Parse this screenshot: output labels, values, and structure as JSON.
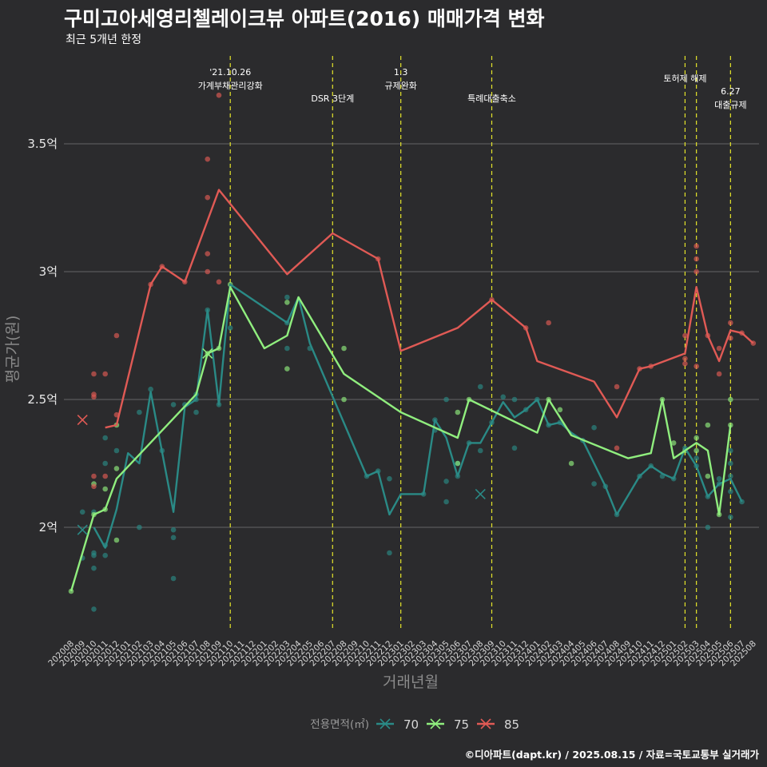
{
  "title": "구미고아세영리첼레이크뷰 아파트(2016) 매매가격 변화",
  "subtitle": "최근 5개년 한정",
  "caption": "©디아파트(dapt.kr) / 2025.08.15 / 자료=국토교통부 실거래가",
  "chart_data": {
    "type": "line",
    "xlabel": "거래년월",
    "ylabel": "평균가(원)",
    "categories": [
      "202008",
      "202009",
      "202010",
      "202011",
      "202012",
      "202101",
      "202102",
      "202103",
      "202104",
      "202105",
      "202106",
      "202107",
      "202108",
      "202109",
      "202110",
      "202111",
      "202112",
      "202201",
      "202202",
      "202203",
      "202204",
      "202205",
      "202206",
      "202207",
      "202208",
      "202209",
      "202210",
      "202211",
      "202212",
      "202301",
      "202302",
      "202303",
      "202304",
      "202305",
      "202306",
      "202307",
      "202308",
      "202309",
      "202310",
      "202311",
      "202312",
      "202401",
      "202402",
      "202403",
      "202404",
      "202405",
      "202406",
      "202407",
      "202408",
      "202409",
      "202410",
      "202411",
      "202412",
      "202501",
      "202502",
      "202503",
      "202504",
      "202505",
      "202506",
      "202507",
      "202508"
    ],
    "ylim": [
      1.6,
      3.85
    ],
    "yticks": [
      {
        "value": 2.0,
        "label": "2억"
      },
      {
        "value": 2.5,
        "label": "2.5억"
      },
      {
        "value": 3.0,
        "label": "3억"
      },
      {
        "value": 3.5,
        "label": "3.5억"
      }
    ],
    "grid": true,
    "legend": {
      "title": "전용면적(㎡)",
      "position": "bottom"
    },
    "series": [
      {
        "name": "70",
        "color": "#2a8a86",
        "line": [
          [
            "202010",
            2.0
          ],
          [
            "202011",
            1.92
          ],
          [
            "202012",
            2.07
          ],
          [
            "202101",
            2.29
          ],
          [
            "202102",
            2.25
          ],
          [
            "202103",
            2.53
          ],
          [
            "202105",
            2.06
          ],
          [
            "202106",
            2.47
          ],
          [
            "202107",
            2.5
          ],
          [
            "202108",
            2.85
          ],
          [
            "202109",
            2.48
          ],
          [
            "202110",
            2.95
          ],
          [
            "202203",
            2.8
          ],
          [
            "202204",
            2.9
          ],
          [
            "202205",
            2.72
          ],
          [
            "202210",
            2.2
          ],
          [
            "202211",
            2.22
          ],
          [
            "202212",
            2.05
          ],
          [
            "202301",
            2.13
          ],
          [
            "202302",
            2.13
          ],
          [
            "202303",
            2.13
          ],
          [
            "202304",
            2.42
          ],
          [
            "202305",
            2.35
          ],
          [
            "202306",
            2.2
          ],
          [
            "202307",
            2.33
          ],
          [
            "202308",
            2.33
          ],
          [
            "202309",
            2.41
          ],
          [
            "202310",
            2.49
          ],
          [
            "202311",
            2.43
          ],
          [
            "202312",
            2.46
          ],
          [
            "202401",
            2.5
          ],
          [
            "202402",
            2.4
          ],
          [
            "202403",
            2.41
          ],
          [
            "202404",
            2.37
          ],
          [
            "202405",
            2.34
          ],
          [
            "202406",
            2.25
          ],
          [
            "202407",
            2.16
          ],
          [
            "202408",
            2.05
          ],
          [
            "202410",
            2.2
          ],
          [
            "202411",
            2.24
          ],
          [
            "202412",
            2.21
          ],
          [
            "202501",
            2.19
          ],
          [
            "202502",
            2.31
          ],
          [
            "202503",
            2.24
          ],
          [
            "202504",
            2.12
          ],
          [
            "202505",
            2.17
          ],
          [
            "202506",
            2.19
          ],
          [
            "202507",
            2.1
          ]
        ],
        "points": [
          [
            "202009",
            1.88
          ],
          [
            "202009",
            2.06
          ],
          [
            "202010",
            1.84
          ],
          [
            "202010",
            1.89
          ],
          [
            "202010",
            1.9
          ],
          [
            "202010",
            2.06
          ],
          [
            "202010",
            1.68
          ],
          [
            "202011",
            1.93
          ],
          [
            "202011",
            1.89
          ],
          [
            "202011",
            2.35
          ],
          [
            "202011",
            2.25
          ],
          [
            "202012",
            2.3
          ],
          [
            "202102",
            2.0
          ],
          [
            "202102",
            2.45
          ],
          [
            "202103",
            2.54
          ],
          [
            "202104",
            2.3
          ],
          [
            "202105",
            2.48
          ],
          [
            "202105",
            1.99
          ],
          [
            "202105",
            1.96
          ],
          [
            "202105",
            1.8
          ],
          [
            "202106",
            2.48
          ],
          [
            "202107",
            2.45
          ],
          [
            "202107",
            2.52
          ],
          [
            "202107",
            2.5
          ],
          [
            "202108",
            2.85
          ],
          [
            "202109",
            2.48
          ],
          [
            "202110",
            2.78
          ],
          [
            "202203",
            2.9
          ],
          [
            "202203",
            2.8
          ],
          [
            "202203",
            2.7
          ],
          [
            "202205",
            2.7
          ],
          [
            "202210",
            2.2
          ],
          [
            "202211",
            2.22
          ],
          [
            "202212",
            2.19
          ],
          [
            "202212",
            1.9
          ],
          [
            "202303",
            2.13
          ],
          [
            "202304",
            2.42
          ],
          [
            "202304",
            2.38
          ],
          [
            "202305",
            2.5
          ],
          [
            "202305",
            2.18
          ],
          [
            "202305",
            2.1
          ],
          [
            "202306",
            2.2
          ],
          [
            "202306",
            2.25
          ],
          [
            "202307",
            2.33
          ],
          [
            "202308",
            2.55
          ],
          [
            "202308",
            2.3
          ],
          [
            "202309",
            2.41
          ],
          [
            "202310",
            2.51
          ],
          [
            "202311",
            2.5
          ],
          [
            "202311",
            2.31
          ],
          [
            "202312",
            2.46
          ],
          [
            "202401",
            2.5
          ],
          [
            "202402",
            2.4
          ],
          [
            "202403",
            2.41
          ],
          [
            "202405",
            2.34
          ],
          [
            "202406",
            2.39
          ],
          [
            "202406",
            2.17
          ],
          [
            "202407",
            2.16
          ],
          [
            "202408",
            2.05
          ],
          [
            "202410",
            2.2
          ],
          [
            "202411",
            2.24
          ],
          [
            "202412",
            2.2
          ],
          [
            "202501",
            2.19
          ],
          [
            "202502",
            2.31
          ],
          [
            "202503",
            2.24
          ],
          [
            "202503",
            2.27
          ],
          [
            "202504",
            2.0
          ],
          [
            "202504",
            2.12
          ],
          [
            "202505",
            2.17
          ],
          [
            "202505",
            2.19
          ],
          [
            "202506",
            2.3
          ],
          [
            "202506",
            2.25
          ],
          [
            "202506",
            2.2
          ],
          [
            "202506",
            2.14
          ],
          [
            "202506",
            2.04
          ],
          [
            "202507",
            2.1
          ]
        ],
        "crosses": [
          [
            "202009",
            1.99
          ],
          [
            "202308",
            2.13
          ]
        ]
      },
      {
        "name": "75",
        "color": "#90ee7e",
        "line": [
          [
            "202008",
            1.75
          ],
          [
            "202010",
            2.05
          ],
          [
            "202011",
            2.07
          ],
          [
            "202012",
            2.19
          ],
          [
            "202107",
            2.52
          ],
          [
            "202108",
            2.68
          ],
          [
            "202109",
            2.7
          ],
          [
            "202110",
            2.94
          ],
          [
            "202201",
            2.7
          ],
          [
            "202203",
            2.75
          ],
          [
            "202204",
            2.9
          ],
          [
            "202208",
            2.6
          ],
          [
            "202301",
            2.45
          ],
          [
            "202306",
            2.35
          ],
          [
            "202307",
            2.5
          ],
          [
            "202401",
            2.37
          ],
          [
            "202402",
            2.5
          ],
          [
            "202404",
            2.36
          ],
          [
            "202409",
            2.27
          ],
          [
            "202411",
            2.29
          ],
          [
            "202412",
            2.5
          ],
          [
            "202501",
            2.27
          ],
          [
            "202502",
            2.3
          ],
          [
            "202503",
            2.33
          ],
          [
            "202504",
            2.3
          ],
          [
            "202505",
            2.05
          ],
          [
            "202506",
            2.4
          ]
        ],
        "points": [
          [
            "202008",
            1.75
          ],
          [
            "202010",
            2.17
          ],
          [
            "202010",
            2.05
          ],
          [
            "202011",
            2.15
          ],
          [
            "202011",
            2.07
          ],
          [
            "202012",
            1.95
          ],
          [
            "202012",
            2.23
          ],
          [
            "202012",
            2.4
          ],
          [
            "202108",
            2.68
          ],
          [
            "202109",
            2.7
          ],
          [
            "202110",
            2.95
          ],
          [
            "202203",
            2.88
          ],
          [
            "202203",
            2.62
          ],
          [
            "202208",
            2.7
          ],
          [
            "202208",
            2.5
          ],
          [
            "202306",
            2.45
          ],
          [
            "202306",
            2.25
          ],
          [
            "202307",
            2.5
          ],
          [
            "202402",
            2.5
          ],
          [
            "202403",
            2.46
          ],
          [
            "202404",
            2.25
          ],
          [
            "202412",
            2.5
          ],
          [
            "202501",
            2.33
          ],
          [
            "202502",
            2.3
          ],
          [
            "202503",
            2.35
          ],
          [
            "202503",
            2.3
          ],
          [
            "202504",
            2.4
          ],
          [
            "202504",
            2.2
          ],
          [
            "202505",
            2.05
          ],
          [
            "202506",
            2.5
          ],
          [
            "202506",
            2.4
          ]
        ],
        "crosses": [
          [
            "202108",
            2.68
          ]
        ]
      },
      {
        "name": "85",
        "color": "#e05a55",
        "line": [
          [
            "202011",
            2.39
          ],
          [
            "202012",
            2.4
          ],
          [
            "202103",
            2.95
          ],
          [
            "202104",
            3.02
          ],
          [
            "202106",
            2.96
          ],
          [
            "202109",
            3.32
          ],
          [
            "202203",
            2.99
          ],
          [
            "202207",
            3.15
          ],
          [
            "202211",
            3.05
          ],
          [
            "202301",
            2.69
          ],
          [
            "202306",
            2.78
          ],
          [
            "202309",
            2.89
          ],
          [
            "202312",
            2.78
          ],
          [
            "202401",
            2.65
          ],
          [
            "202406",
            2.57
          ],
          [
            "202408",
            2.43
          ],
          [
            "202410",
            2.62
          ],
          [
            "202411",
            2.63
          ],
          [
            "202502",
            2.68
          ],
          [
            "202503",
            2.94
          ],
          [
            "202504",
            2.75
          ],
          [
            "202505",
            2.65
          ],
          [
            "202506",
            2.77
          ],
          [
            "202507",
            2.76
          ],
          [
            "202508",
            2.72
          ]
        ],
        "points": [
          [
            "202010",
            2.6
          ],
          [
            "202010",
            2.52
          ],
          [
            "202010",
            2.51
          ],
          [
            "202010",
            2.2
          ],
          [
            "202010",
            2.16
          ],
          [
            "202011",
            2.6
          ],
          [
            "202011",
            2.2
          ],
          [
            "202012",
            2.44
          ],
          [
            "202012",
            2.75
          ],
          [
            "202103",
            2.95
          ],
          [
            "202104",
            3.02
          ],
          [
            "202106",
            2.96
          ],
          [
            "202108",
            3.44
          ],
          [
            "202108",
            3.29
          ],
          [
            "202108",
            3.07
          ],
          [
            "202108",
            3.0
          ],
          [
            "202109",
            3.69
          ],
          [
            "202109",
            2.96
          ],
          [
            "202211",
            3.05
          ],
          [
            "202309",
            2.89
          ],
          [
            "202312",
            2.78
          ],
          [
            "202402",
            2.8
          ],
          [
            "202408",
            2.55
          ],
          [
            "202408",
            2.31
          ],
          [
            "202410",
            2.62
          ],
          [
            "202411",
            2.63
          ],
          [
            "202502",
            2.75
          ],
          [
            "202502",
            2.66
          ],
          [
            "202502",
            2.64
          ],
          [
            "202503",
            3.1
          ],
          [
            "202503",
            3.05
          ],
          [
            "202503",
            3.0
          ],
          [
            "202503",
            2.63
          ],
          [
            "202504",
            2.75
          ],
          [
            "202505",
            2.7
          ],
          [
            "202505",
            2.6
          ],
          [
            "202506",
            2.8
          ],
          [
            "202506",
            2.74
          ],
          [
            "202507",
            2.76
          ],
          [
            "202508",
            2.72
          ]
        ],
        "crosses": [
          [
            "202009",
            2.42
          ]
        ]
      }
    ],
    "annotations": [
      {
        "x": "202110",
        "lines": [
          "'21.10.26",
          "가계부채관리강화"
        ],
        "level": 0
      },
      {
        "x": "202207",
        "lines": [
          "DSR 3단계"
        ],
        "level": 2
      },
      {
        "x": "202301",
        "lines": [
          "1.3",
          "규제완화"
        ],
        "level": 0
      },
      {
        "x": "202309",
        "lines": [
          "특례대출축소"
        ],
        "level": 2
      },
      {
        "x": "202502",
        "lines": [
          "토허제 해제"
        ],
        "level": 1
      },
      {
        "x": "202503",
        "lines": [],
        "level": 0
      },
      {
        "x": "202506",
        "lines": [
          "6.27",
          "대출규제"
        ],
        "level": 3
      }
    ]
  }
}
